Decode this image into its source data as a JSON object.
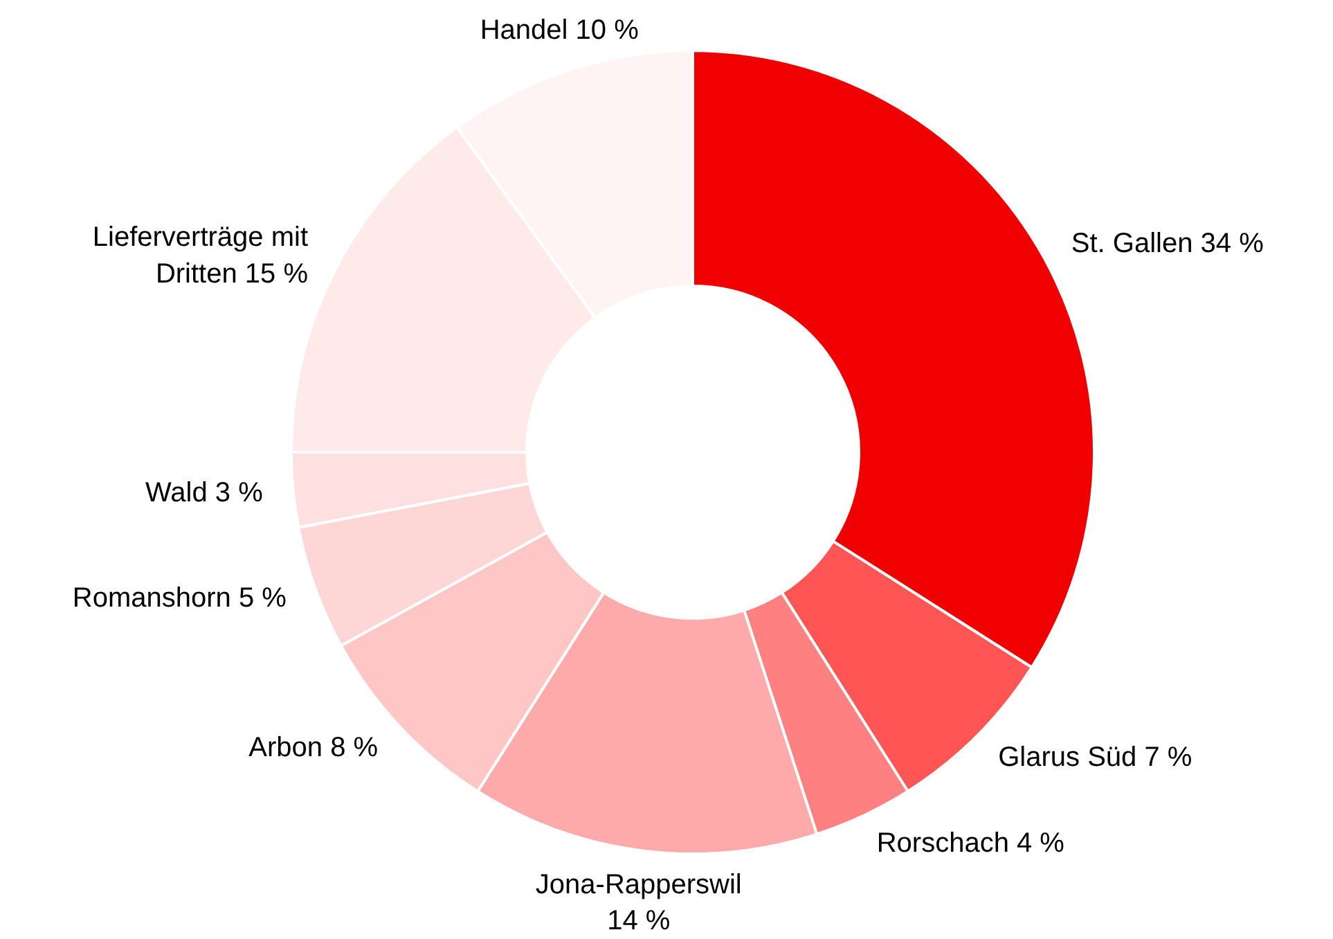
{
  "chart_data": {
    "type": "donut",
    "categories": [
      "St. Gallen",
      "Glarus Süd",
      "Rorschach",
      "Jona-Rapperswil",
      "Arbon",
      "Romanshorn",
      "Wald",
      "Lieferverträge mit Dritten",
      "Handel"
    ],
    "values": [
      34,
      7,
      4,
      14,
      8,
      5,
      3,
      15,
      10
    ],
    "value_labels": [
      "34 %",
      "7 %",
      "4 %",
      "14 %",
      "8 %",
      "5 %",
      "3 %",
      "15 %",
      "10 %"
    ],
    "colors": [
      "#f00000",
      "#ff5555",
      "#ff8080",
      "#ffaaaa",
      "#ffc6c6",
      "#ffd6d6",
      "#ffe0e0",
      "#ffeaea",
      "#fff3f3"
    ]
  }
}
